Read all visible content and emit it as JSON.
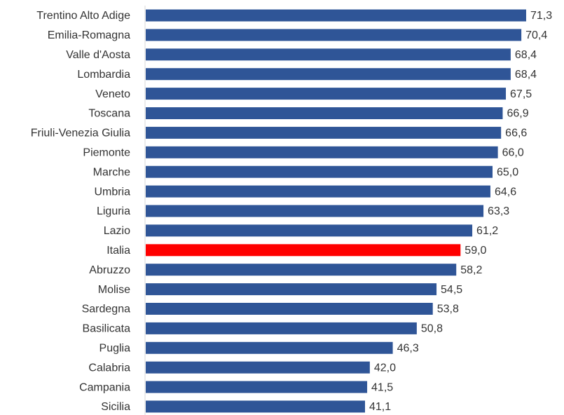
{
  "chart_data": {
    "type": "hbar",
    "categories": [
      "Trentino Alto Adige",
      "Emilia-Romagna",
      "Valle d'Aosta",
      "Lombardia",
      "Veneto",
      "Toscana",
      "Friuli-Venezia Giulia",
      "Piemonte",
      "Marche",
      "Umbria",
      "Liguria",
      "Lazio",
      "Italia",
      "Abruzzo",
      "Molise",
      "Sardegna",
      "Basilicata",
      "Puglia",
      "Calabria",
      "Campania",
      "Sicilia"
    ],
    "values": [
      71.3,
      70.4,
      68.4,
      68.4,
      67.5,
      66.9,
      66.6,
      66.0,
      65.0,
      64.6,
      63.3,
      61.2,
      59.0,
      58.2,
      54.5,
      53.8,
      50.8,
      46.3,
      42.0,
      41.5,
      41.1
    ],
    "value_labels": [
      "71,3",
      "70,4",
      "68,4",
      "68,4",
      "67,5",
      "66,9",
      "66,6",
      "66,0",
      "65,0",
      "64,6",
      "63,3",
      "61,2",
      "59,0",
      "58,2",
      "54,5",
      "53,8",
      "50,8",
      "46,3",
      "42,0",
      "41,5",
      "41,1"
    ],
    "colors": [
      "#2f5597",
      "#2f5597",
      "#2f5597",
      "#2f5597",
      "#2f5597",
      "#2f5597",
      "#2f5597",
      "#2f5597",
      "#2f5597",
      "#2f5597",
      "#2f5597",
      "#2f5597",
      "#ff0000",
      "#2f5597",
      "#2f5597",
      "#2f5597",
      "#2f5597",
      "#2f5597",
      "#2f5597",
      "#2f5597",
      "#2f5597"
    ],
    "xlim": [
      0,
      78
    ]
  }
}
